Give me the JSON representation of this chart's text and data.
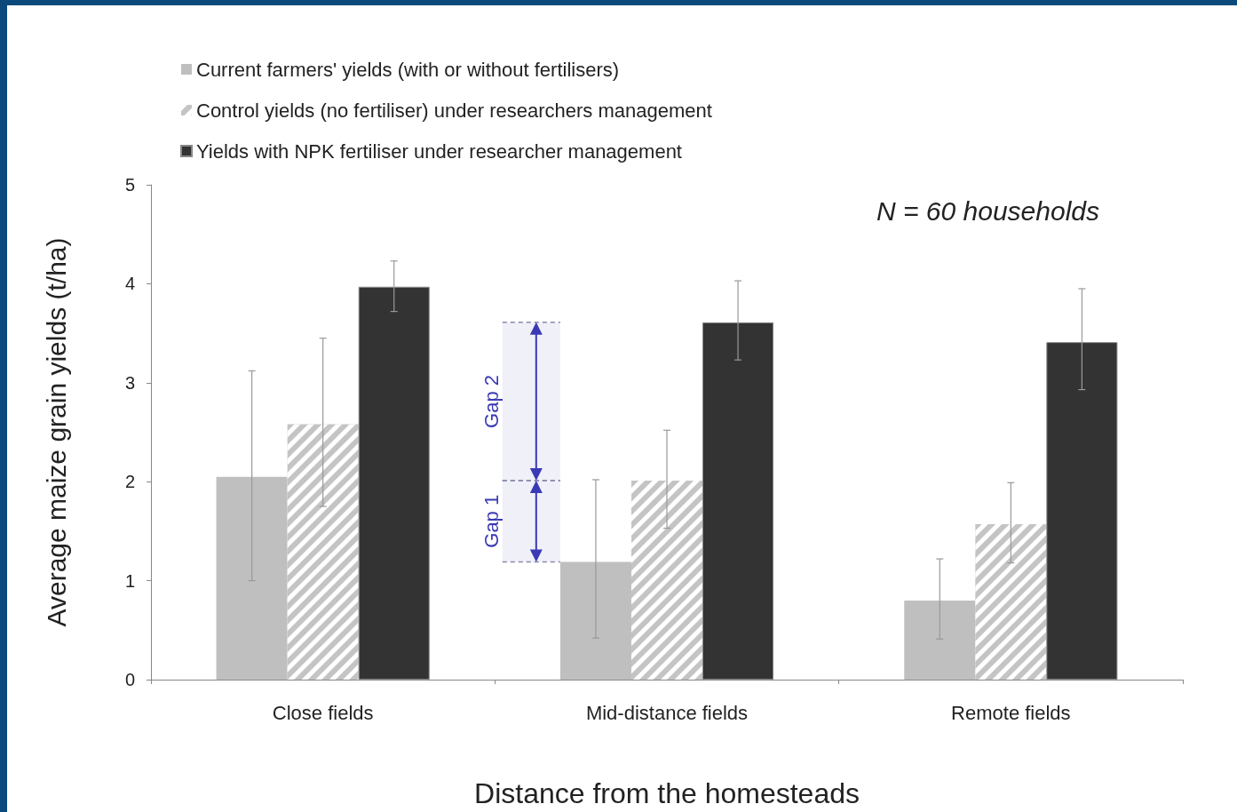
{
  "chart_data": {
    "type": "bar",
    "ylabel": "Average maize grain yields (t/ha)",
    "xlabel": "Distance from the homesteads",
    "categories": [
      "Close fields",
      "Mid-distance fields",
      "Remote fields"
    ],
    "series": [
      {
        "name": "Current farmers' yields (with or without fertilisers)",
        "color": "#bfbfbf",
        "values": [
          2.05,
          1.19,
          0.8
        ],
        "errors": [
          [
            1.0,
            3.12
          ],
          [
            0.42,
            2.02
          ],
          [
            0.41,
            1.22
          ]
        ]
      },
      {
        "name": "Control yields (no fertiliser) under researchers management",
        "color": "#c4c4c4",
        "values": [
          2.58,
          2.01,
          1.57
        ],
        "errors": [
          [
            1.75,
            3.45
          ],
          [
            1.53,
            2.52
          ],
          [
            1.18,
            1.99
          ]
        ]
      },
      {
        "name": "Yields with NPK fertiliser under researcher management",
        "color": "#333333",
        "values": [
          3.97,
          3.61,
          3.41
        ],
        "errors": [
          [
            3.72,
            4.23
          ],
          [
            3.23,
            4.03
          ],
          [
            2.93,
            3.95
          ]
        ]
      }
    ],
    "ylim": [
      0,
      5
    ],
    "yticks": [
      0,
      1,
      2,
      3,
      4,
      5
    ],
    "grid": false,
    "legend": "top left",
    "annotations": [
      "N = 60 households"
    ],
    "bands": [
      {
        "axis": "y",
        "from": 1.19,
        "to": 2.01,
        "label": "Gap 1",
        "color": "#3a3ab4"
      },
      {
        "axis": "y",
        "from": 2.01,
        "to": 3.61,
        "label": "Gap 2",
        "color": "#3a3ab4"
      }
    ]
  }
}
